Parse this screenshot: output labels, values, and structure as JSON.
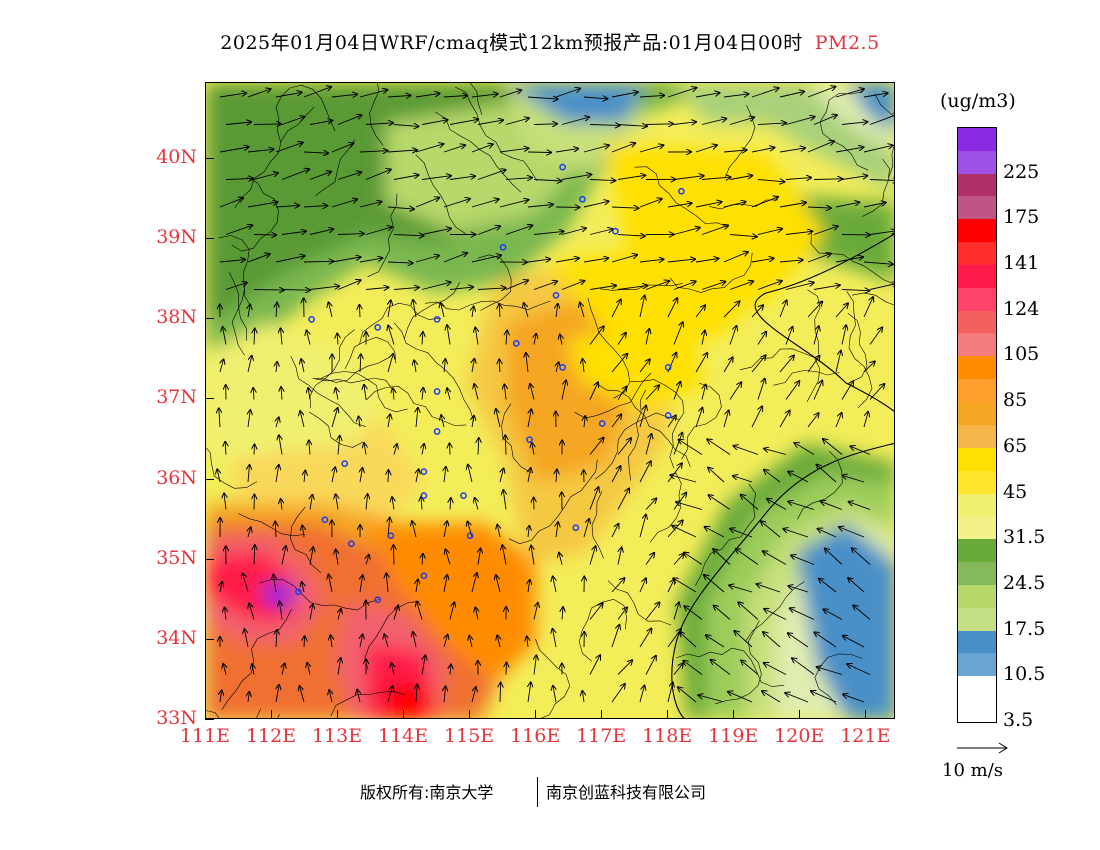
{
  "header": {
    "title": "2025年01月04日WRF/cmaq模式12km预报产品:01月04日00时",
    "pollutant": "PM2.5"
  },
  "axes": {
    "lat_labels": [
      "40N",
      "39N",
      "38N",
      "37N",
      "36N",
      "35N",
      "34N",
      "33N"
    ],
    "lon_labels": [
      "111E",
      "112E",
      "113E",
      "114E",
      "115E",
      "116E",
      "117E",
      "118E",
      "119E",
      "120E",
      "121E"
    ]
  },
  "legend": {
    "units": "(ug/m3)",
    "labels": [
      "225",
      "175",
      "141",
      "124",
      "105",
      "85",
      "65",
      "45",
      "31.5",
      "24.5",
      "17.5",
      "10.5",
      "3.5"
    ],
    "colors": [
      "#8a2be2",
      "#b0306b",
      "#ff0000",
      "#ff1a4a",
      "#f26060",
      "#ff8c00",
      "#f5a623",
      "#ffe000",
      "#f0f070",
      "#6aaa3a",
      "#b8d86a",
      "#4a90c8",
      "#ffffff"
    ]
  },
  "wind_reference": {
    "label": "10 m/s"
  },
  "footer": {
    "copyright_owner": "版权所有:南京大学",
    "company": "南京创蓝科技有限公司"
  },
  "map": {
    "region": "North China Plain",
    "cities": [
      {
        "lon": 116.4,
        "lat": 39.9
      },
      {
        "lon": 117.2,
        "lat": 39.1
      },
      {
        "lon": 118.2,
        "lat": 39.6
      },
      {
        "lon": 115.5,
        "lat": 38.9
      },
      {
        "lon": 116.7,
        "lat": 39.5
      },
      {
        "lon": 114.5,
        "lat": 38.0
      },
      {
        "lon": 112.6,
        "lat": 38.0
      },
      {
        "lon": 113.6,
        "lat": 37.9
      },
      {
        "lon": 116.3,
        "lat": 38.3
      },
      {
        "lon": 115.7,
        "lat": 37.7
      },
      {
        "lon": 116.4,
        "lat": 37.4
      },
      {
        "lon": 114.5,
        "lat": 37.1
      },
      {
        "lon": 114.5,
        "lat": 36.6
      },
      {
        "lon": 115.9,
        "lat": 36.5
      },
      {
        "lon": 117.0,
        "lat": 36.7
      },
      {
        "lon": 118.0,
        "lat": 36.8
      },
      {
        "lon": 118.0,
        "lat": 37.4
      },
      {
        "lon": 113.1,
        "lat": 36.2
      },
      {
        "lon": 114.3,
        "lat": 36.1
      },
      {
        "lon": 114.3,
        "lat": 35.8
      },
      {
        "lon": 114.9,
        "lat": 35.8
      },
      {
        "lon": 112.8,
        "lat": 35.5
      },
      {
        "lon": 113.2,
        "lat": 35.2
      },
      {
        "lon": 113.8,
        "lat": 35.3
      },
      {
        "lon": 115.0,
        "lat": 35.3
      },
      {
        "lon": 116.6,
        "lat": 35.4
      },
      {
        "lon": 114.3,
        "lat": 34.8
      },
      {
        "lon": 113.6,
        "lat": 34.5
      },
      {
        "lon": 112.4,
        "lat": 34.6
      }
    ]
  }
}
